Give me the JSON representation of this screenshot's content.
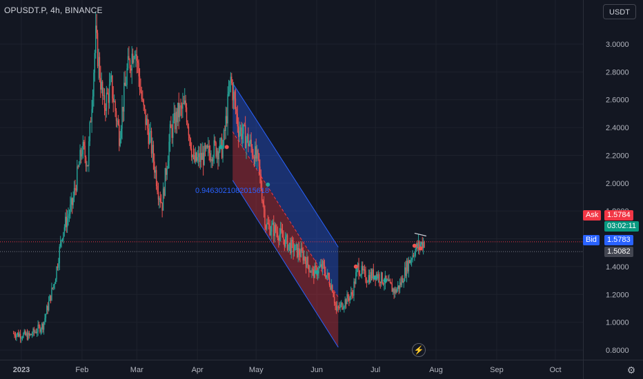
{
  "header": {
    "symbol": "OPUSDT.P, 4h, BINANCE",
    "currency": "USDT"
  },
  "colors": {
    "up": "#26a69a",
    "down": "#ef5350",
    "background": "#131722",
    "grid": "#1e222d",
    "channel_line": "#2962ff"
  },
  "price_tags": {
    "ask_label": "Ask",
    "ask_value": "1.5784",
    "countdown": "03:02:11",
    "bid_label": "Bid",
    "bid_value": "1.5783",
    "other_value": "1.5082"
  },
  "channel_label": "0.9463021082015618",
  "chart_data": {
    "type": "candlestick",
    "ylim": [
      0.78,
      3.28
    ],
    "yticks": [
      "3.0000",
      "2.8000",
      "2.6000",
      "2.4000",
      "2.2000",
      "2.0000",
      "1.8000",
      "1.6000",
      "1.4000",
      "1.2000",
      "1.0000",
      "0.8000"
    ],
    "xticks": [
      "2023",
      "Feb",
      "Mar",
      "Apr",
      "May",
      "Jun",
      "Jul",
      "Aug",
      "Sep",
      "Oct"
    ],
    "xlim": [
      "2022-12-28",
      "2023-10-17"
    ],
    "trend": [
      [
        "2022-12-28",
        0.92
      ],
      [
        "2023-01-05",
        0.9
      ],
      [
        "2023-01-12",
        0.98
      ],
      [
        "2023-01-18",
        1.3
      ],
      [
        "2023-01-22",
        1.65
      ],
      [
        "2023-01-27",
        1.85
      ],
      [
        "2023-02-01",
        2.25
      ],
      [
        "2023-02-04",
        2.15
      ],
      [
        "2023-02-08",
        3.05
      ],
      [
        "2023-02-12",
        2.55
      ],
      [
        "2023-02-16",
        2.7
      ],
      [
        "2023-02-20",
        2.35
      ],
      [
        "2023-02-24",
        2.8
      ],
      [
        "2023-02-28",
        3.0
      ],
      [
        "2023-03-04",
        2.55
      ],
      [
        "2023-03-08",
        2.3
      ],
      [
        "2023-03-12",
        1.95
      ],
      [
        "2023-03-14",
        1.85
      ],
      [
        "2023-03-18",
        2.35
      ],
      [
        "2023-03-22",
        2.5
      ],
      [
        "2023-03-26",
        2.55
      ],
      [
        "2023-03-30",
        2.15
      ],
      [
        "2023-04-05",
        2.2
      ],
      [
        "2023-04-10",
        2.25
      ],
      [
        "2023-04-14",
        2.25
      ],
      [
        "2023-04-18",
        2.75
      ],
      [
        "2023-04-22",
        2.4
      ],
      [
        "2023-04-27",
        2.3
      ],
      [
        "2023-05-02",
        2.15
      ],
      [
        "2023-05-06",
        1.7
      ],
      [
        "2023-05-12",
        1.65
      ],
      [
        "2023-05-18",
        1.55
      ],
      [
        "2023-05-25",
        1.48
      ],
      [
        "2023-05-30",
        1.35
      ],
      [
        "2023-06-04",
        1.4
      ],
      [
        "2023-06-09",
        1.25
      ],
      [
        "2023-06-11",
        1.08
      ],
      [
        "2023-06-16",
        1.16
      ],
      [
        "2023-06-19",
        1.2
      ],
      [
        "2023-06-22",
        1.4
      ],
      [
        "2023-06-26",
        1.32
      ],
      [
        "2023-07-01",
        1.35
      ],
      [
        "2023-07-07",
        1.28
      ],
      [
        "2023-07-11",
        1.22
      ],
      [
        "2023-07-14",
        1.28
      ],
      [
        "2023-07-17",
        1.4
      ],
      [
        "2023-07-21",
        1.52
      ],
      [
        "2023-07-24",
        1.56
      ],
      [
        "2023-07-26",
        1.58
      ]
    ],
    "channel": {
      "line1": [
        [
          "2023-04-19",
          2.72
        ],
        [
          "2023-06-12",
          1.54
        ]
      ],
      "line2": [
        [
          "2023-04-19",
          2.02
        ],
        [
          "2023-06-12",
          0.82
        ]
      ]
    },
    "markers": [
      {
        "date": "2023-04-13",
        "value": 2.26,
        "color": "up"
      },
      {
        "date": "2023-04-16",
        "value": 2.26,
        "color": "down"
      },
      {
        "date": "2023-05-07",
        "value": 1.99,
        "color": "up"
      },
      {
        "date": "2023-06-01",
        "value": 1.36,
        "color": "up"
      },
      {
        "date": "2023-06-21",
        "value": 1.4,
        "color": "down"
      },
      {
        "date": "2023-07-01",
        "value": 1.32,
        "color": "up"
      },
      {
        "date": "2023-07-06",
        "value": 1.3,
        "color": "up"
      },
      {
        "date": "2023-07-21",
        "value": 1.55,
        "color": "down"
      },
      {
        "date": "2023-07-24",
        "value": 1.53,
        "color": "down"
      }
    ],
    "trendline": [
      [
        "2023-07-21",
        1.64
      ],
      [
        "2023-07-27",
        1.62
      ]
    ],
    "ask": 1.5784,
    "bid": 1.5783,
    "other": 1.5082
  }
}
